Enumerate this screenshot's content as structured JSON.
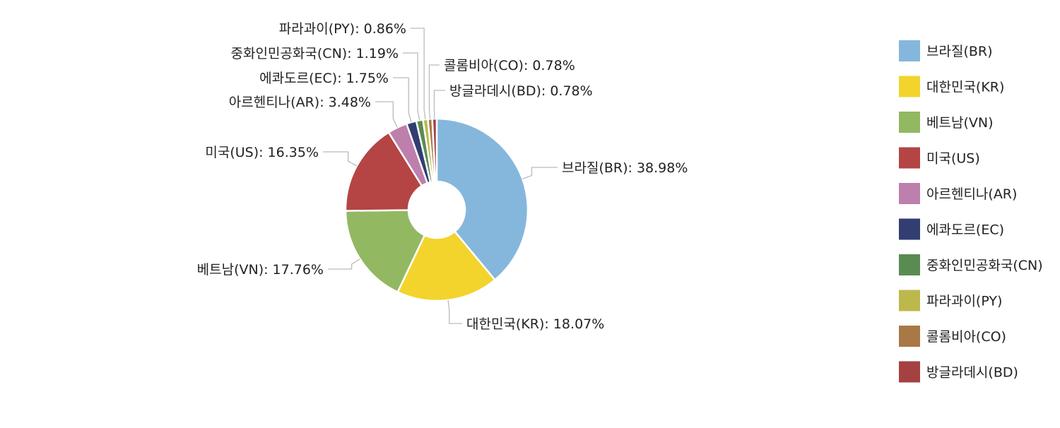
{
  "chart_data": {
    "type": "pie",
    "donut": true,
    "legend_position": "right",
    "label_separator": ": ",
    "categories": [
      "브라질(BR)",
      "대한민국(KR)",
      "베트남(VN)",
      "미국(US)",
      "아르헨티나(AR)",
      "에콰도르(EC)",
      "중화인민공화국(CN)",
      "파라과이(PY)",
      "콜롬비아(CO)",
      "방글라데시(BD)"
    ],
    "values": [
      38.98,
      18.07,
      17.76,
      16.35,
      3.48,
      1.75,
      1.19,
      0.86,
      0.78,
      0.78
    ],
    "value_labels": [
      "38.98%",
      "18.07%",
      "17.76%",
      "16.35%",
      "3.48%",
      "1.75%",
      "1.19%",
      "0.86%",
      "0.78%",
      "0.78%"
    ],
    "colors": [
      "#85b7dd",
      "#f2d42d",
      "#93b862",
      "#b44544",
      "#bd7fac",
      "#323e71",
      "#5a8c52",
      "#bdb84c",
      "#a87846",
      "#a54143"
    ]
  }
}
